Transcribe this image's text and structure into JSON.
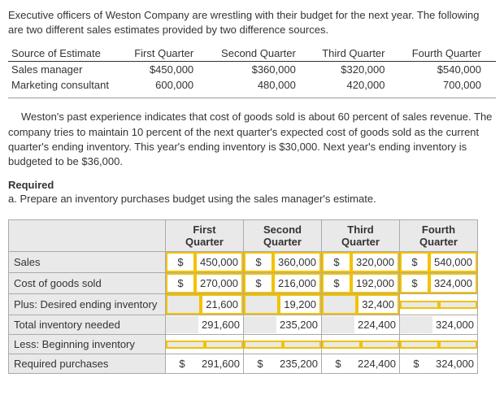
{
  "intro": "Executive officers of Weston Company are wrestling with their budget for the next year. The following are two different sales estimates provided by two difference sources.",
  "estimates": {
    "headers": [
      "Source of Estimate",
      "First Quarter",
      "Second Quarter",
      "Third Quarter",
      "Fourth Quarter"
    ],
    "rows": [
      {
        "label": "Sales manager",
        "q1": "$450,000",
        "q2": "$360,000",
        "q3": "$320,000",
        "q4": "$540,000"
      },
      {
        "label": "Marketing consultant",
        "q1": "600,000",
        "q2": "480,000",
        "q3": "420,000",
        "q4": "700,000"
      }
    ]
  },
  "para2": "Weston's past experience indicates that cost of goods sold is about 60 percent of sales revenue. The company tries to maintain 10 percent of the next quarter's expected cost of goods sold as the current quarter's ending inventory. This year's ending inventory is $30,000. Next year's ending inventory is budgeted to be $36,000.",
  "required_label": "Required",
  "required_a": "a.  Prepare an inventory purchases budget using the sales manager's estimate.",
  "budget": {
    "headers": {
      "q1a": "First",
      "q1b": "Quarter",
      "q2a": "Second",
      "q2b": "Quarter",
      "q3a": "Third",
      "q3b": "Quarter",
      "q4a": "Fourth",
      "q4b": "Quarter"
    },
    "rows": {
      "sales": {
        "label": "Sales",
        "q1c": "$",
        "q1": "450,000",
        "q2c": "$",
        "q2": "360,000",
        "q3c": "$",
        "q3": "320,000",
        "q4c": "$",
        "q4": "540,000"
      },
      "cogs": {
        "label": "Cost of goods sold",
        "q1c": "$",
        "q1": "270,000",
        "q2c": "$",
        "q2": "216,000",
        "q3c": "$",
        "q3": "192,000",
        "q4c": "$",
        "q4": "324,000"
      },
      "desired": {
        "label": "Plus: Desired ending inventory",
        "q1": "21,600",
        "q2": "19,200",
        "q3": "32,400",
        "q4": ""
      },
      "totalneed": {
        "label": "Total inventory needed",
        "q1": "291,600",
        "q2": "235,200",
        "q3": "224,400",
        "q4": "324,000"
      },
      "begin": {
        "label": "Less: Beginning inventory"
      },
      "reqp": {
        "label": "Required purchases",
        "q1c": "$",
        "q1": "291,600",
        "q2c": "$",
        "q2": "235,200",
        "q3c": "$",
        "q3": "224,400",
        "q4c": "$",
        "q4": "324,000"
      }
    }
  }
}
